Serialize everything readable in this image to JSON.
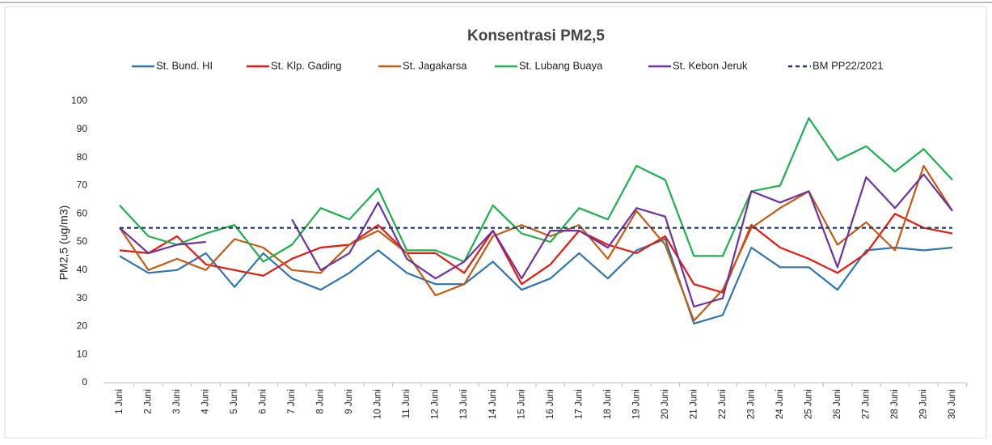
{
  "chart_data": {
    "type": "line",
    "title": "Konsentrasi PM2,5",
    "y_label": "PM2,5 (ug/m3)",
    "categories": [
      "1 Juni",
      "2 Juni",
      "3 Juni",
      "4 Juni",
      "5 Juni",
      "6 Juni",
      "7 Juni",
      "8 Juni",
      "9 Juni",
      "10 Juni",
      "11 Juni",
      "12 Juni",
      "13 Juni",
      "14 Juni",
      "15 Juni",
      "16 Juni",
      "17 Juni",
      "18 Juni",
      "19 Juni",
      "20 Juni",
      "21 Juni",
      "22 Juni",
      "23 Juni",
      "24 Juni",
      "25 Juni",
      "26 Juni",
      "27 Juni",
      "28 Juni",
      "29 Juni",
      "30 Juni"
    ],
    "series": [
      {
        "name": "St. Bund. HI",
        "color": "#2e75b6",
        "values": [
          45,
          39,
          40,
          46,
          34,
          46,
          37,
          33,
          39,
          47,
          39,
          35,
          35,
          43,
          33,
          37,
          46,
          37,
          47,
          51,
          21,
          24,
          48,
          41,
          41,
          33,
          47,
          48,
          47,
          48
        ]
      },
      {
        "name": "St. Klp. Gading",
        "color": "#e8170f",
        "values": [
          47,
          46,
          52,
          42,
          40,
          38,
          44,
          48,
          49,
          56,
          46,
          46,
          39,
          54,
          35,
          42,
          54,
          49,
          46,
          52,
          35,
          32,
          56,
          48,
          44,
          39,
          46,
          60,
          55,
          53
        ]
      },
      {
        "name": "St. Jagakarsa",
        "color": "#c55a11",
        "values": [
          55,
          40,
          44,
          40,
          51,
          48,
          40,
          39,
          49,
          54,
          46,
          31,
          35,
          52,
          56,
          52,
          56,
          44,
          61,
          49,
          22,
          33,
          55,
          62,
          68,
          49,
          57,
          47,
          77,
          61
        ]
      },
      {
        "name": "St. Lubang Buaya",
        "color": "#1cb14c",
        "values": [
          63,
          52,
          49,
          53,
          56,
          43,
          49,
          62,
          58,
          69,
          47,
          47,
          43,
          63,
          53,
          50,
          62,
          58,
          77,
          72,
          45,
          45,
          68,
          70,
          94,
          79,
          84,
          75,
          83,
          72
        ]
      },
      {
        "name": "St. Kebon Jeruk",
        "color": "#7030a0",
        "values": [
          55,
          46,
          49,
          50,
          null,
          null,
          58,
          40,
          46,
          64,
          44,
          37,
          43,
          54,
          37,
          54,
          54,
          48,
          62,
          59,
          27,
          30,
          68,
          64,
          68,
          41,
          73,
          62,
          74,
          61
        ]
      },
      {
        "name": "BM PP22/2021",
        "color": "#203864",
        "line_style": "dashed",
        "values": [
          55,
          55,
          55,
          55,
          55,
          55,
          55,
          55,
          55,
          55,
          55,
          55,
          55,
          55,
          55,
          55,
          55,
          55,
          55,
          55,
          55,
          55,
          55,
          55,
          55,
          55,
          55,
          55,
          55,
          55
        ]
      }
    ],
    "ylim": [
      0,
      100
    ],
    "yticks": [
      0,
      10,
      20,
      30,
      40,
      50,
      60,
      70,
      80,
      90,
      100
    ],
    "grid": false
  }
}
